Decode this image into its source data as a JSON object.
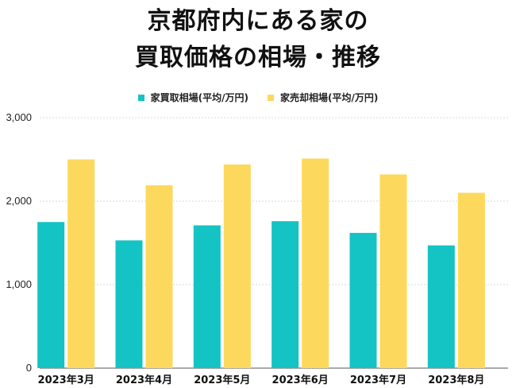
{
  "chart_data": {
    "type": "bar",
    "title_lines": [
      "京都府内にある家の",
      "買取価格の相場・推移"
    ],
    "categories": [
      "2023年3月",
      "2023年4月",
      "2023年5月",
      "2023年6月",
      "2023年7月",
      "2023年8月"
    ],
    "series": [
      {
        "name": "家買取相場(平均/万円)",
        "color": "#14c3c3",
        "values": [
          1750,
          1530,
          1710,
          1760,
          1620,
          1470
        ]
      },
      {
        "name": "家売却相場(平均/万円)",
        "color": "#fcd95c",
        "values": [
          2500,
          2190,
          2440,
          2510,
          2320,
          2100
        ]
      }
    ],
    "yticks": [
      "0",
      "1,000",
      "2,000",
      "3,000"
    ],
    "ylim": [
      0,
      3000
    ],
    "grid": true,
    "legend_position": "top-center",
    "xlabel": "",
    "ylabel": ""
  }
}
